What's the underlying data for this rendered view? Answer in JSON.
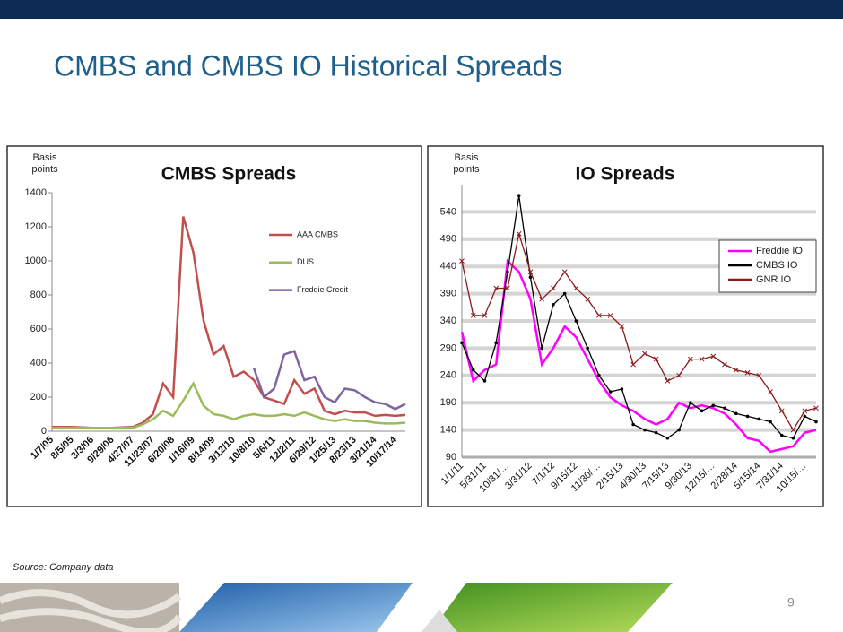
{
  "title": "CMBS and CMBS IO Historical Spreads",
  "source": "Source: Company data",
  "page_number": "9",
  "chart_data": [
    {
      "type": "line",
      "title": "CMBS Spreads",
      "y_label": "Basis points",
      "categories": [
        "1/7/05",
        null,
        "8/5/05",
        null,
        "3/3/06",
        null,
        "9/29/06",
        null,
        "4/27/07",
        null,
        "11/23/07",
        null,
        "6/20/08",
        null,
        "1/16/09",
        null,
        "8/14/09",
        null,
        "3/12/10",
        null,
        "10/8/10",
        null,
        "5/6/11",
        null,
        "12/2/11",
        null,
        "6/29/12",
        null,
        "1/25/13",
        null,
        "8/23/13",
        null,
        "3/21/14",
        null,
        "10/17/14",
        null
      ],
      "series": [
        {
          "name": "AAA CMBS",
          "color": "#c0504d",
          "values": [
            25,
            25,
            25,
            22,
            20,
            20,
            20,
            22,
            25,
            50,
            100,
            280,
            200,
            1260,
            1050,
            650,
            450,
            500,
            320,
            350,
            300,
            200,
            180,
            160,
            300,
            220,
            250,
            120,
            100,
            120,
            110,
            110,
            90,
            95,
            90,
            95
          ]
        },
        {
          "name": "DUS",
          "color": "#9bbb59",
          "values": [
            20,
            20,
            20,
            20,
            20,
            20,
            20,
            20,
            20,
            40,
            70,
            120,
            90,
            180,
            280,
            150,
            100,
            90,
            70,
            90,
            100,
            90,
            90,
            100,
            90,
            110,
            90,
            70,
            60,
            70,
            60,
            60,
            50,
            45,
            45,
            50
          ]
        },
        {
          "name": "Freddie Credit",
          "color": "#8064a2",
          "values": [
            null,
            null,
            null,
            null,
            null,
            null,
            null,
            null,
            null,
            null,
            null,
            null,
            null,
            null,
            null,
            null,
            null,
            null,
            null,
            null,
            370,
            200,
            250,
            450,
            470,
            300,
            320,
            200,
            170,
            250,
            240,
            200,
            170,
            160,
            130,
            160
          ]
        }
      ],
      "ylim": [
        0,
        1400
      ],
      "yticks": [
        0,
        200,
        400,
        600,
        800,
        1000,
        1200,
        1400
      ],
      "grid": false,
      "legend": "right"
    },
    {
      "type": "line",
      "title": "IO Spreads",
      "y_label": "Basis points",
      "categories": [
        "1/1/11",
        null,
        "5/31/11",
        null,
        "10/31/…",
        null,
        "3/31/12",
        null,
        "7/1/12",
        null,
        "9/15/12",
        null,
        "11/30/…",
        null,
        "2/15/13",
        null,
        "4/30/13",
        null,
        "7/15/13",
        null,
        "9/30/13",
        null,
        "12/15/…",
        null,
        "2/28/14",
        null,
        "5/15/14",
        null,
        "7/31/14",
        null,
        "10/15/…",
        null
      ],
      "series": [
        {
          "name": "Freddie IO",
          "color": "#ff00ff",
          "marker": "none",
          "values": [
            320,
            230,
            250,
            260,
            450,
            430,
            380,
            260,
            290,
            330,
            310,
            270,
            230,
            200,
            185,
            175,
            160,
            150,
            160,
            190,
            180,
            185,
            180,
            170,
            150,
            125,
            120,
            100,
            105,
            110,
            135,
            140
          ]
        },
        {
          "name": "CMBS  IO",
          "color": "#000000",
          "marker": "dot",
          "values": [
            300,
            250,
            230,
            300,
            430,
            570,
            420,
            290,
            370,
            390,
            340,
            290,
            240,
            210,
            215,
            150,
            140,
            135,
            125,
            140,
            190,
            175,
            185,
            180,
            170,
            165,
            160,
            155,
            130,
            125,
            165,
            155
          ]
        },
        {
          "name": "GNR IO",
          "color": "#8b1a1a",
          "marker": "x",
          "values": [
            450,
            350,
            350,
            400,
            400,
            500,
            430,
            380,
            400,
            430,
            400,
            380,
            350,
            350,
            330,
            260,
            280,
            270,
            230,
            240,
            270,
            270,
            275,
            260,
            250,
            245,
            240,
            210,
            175,
            140,
            175,
            180
          ]
        }
      ],
      "ylim": [
        90,
        590
      ],
      "yticks": [
        90,
        140,
        190,
        240,
        290,
        340,
        390,
        440,
        490,
        540
      ],
      "grid": true,
      "legend": "upper right"
    }
  ]
}
